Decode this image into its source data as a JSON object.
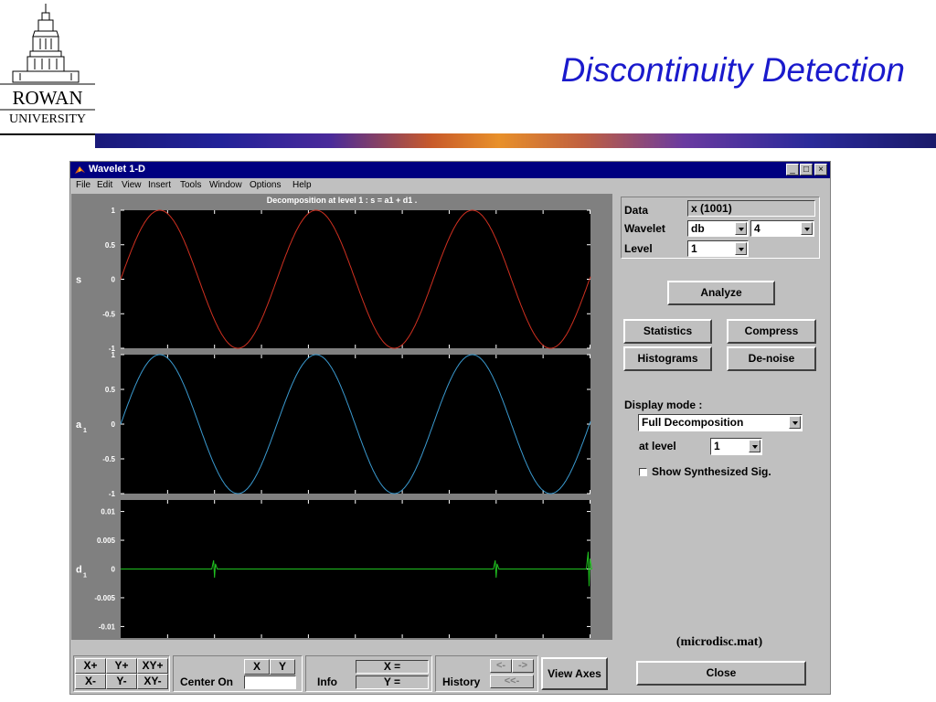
{
  "slide": {
    "title": "Discontinuity Detection",
    "logo_line1": "ROWAN",
    "logo_line2": "UNIVERSITY",
    "caption": "(microdisc.mat)"
  },
  "window": {
    "title": "Wavelet 1-D",
    "menu": [
      "File",
      "Edit",
      "View",
      "Insert",
      "Tools",
      "Window",
      "Options",
      "Help"
    ],
    "controls": [
      "_",
      "□",
      "×"
    ]
  },
  "plot": {
    "title": "Decomposition at level 1 : s = a1 + d1 ."
  },
  "chart_data": [
    {
      "type": "line",
      "name": "s",
      "ylabel": "s",
      "ylim": [
        -1,
        1
      ],
      "yticks": [
        "1",
        "0.5",
        "0",
        "-0.5",
        "-1"
      ],
      "xlim": [
        0,
        1001
      ],
      "x_period": 333,
      "x_start_phase": 0,
      "color": "#d03020"
    },
    {
      "type": "line",
      "name": "a1",
      "ylabel": "a",
      "ylabel_sub": "1",
      "ylim": [
        -1,
        1
      ],
      "yticks": [
        "1",
        "0.5",
        "0",
        "-0.5",
        "-1"
      ],
      "xlim": [
        0,
        1001
      ],
      "x_period": 333,
      "x_start_phase": 0,
      "color": "#3a9ad0"
    },
    {
      "type": "line",
      "name": "d1",
      "ylabel": "d",
      "ylabel_sub": "1",
      "ylim": [
        -0.012,
        0.012
      ],
      "yticks": [
        "0.01",
        "0.005",
        "0",
        "-0.005",
        "-0.01"
      ],
      "ytick_values": [
        0.01,
        0.005,
        0,
        -0.005,
        -0.01
      ],
      "xlim": [
        0,
        1001
      ],
      "xticks": [
        "100",
        "200",
        "300",
        "400",
        "500",
        "600",
        "700",
        "800",
        "900",
        "1000"
      ],
      "xtick_values": [
        100,
        200,
        300,
        400,
        500,
        600,
        700,
        800,
        900,
        1000
      ],
      "spikes": [
        {
          "x": 200,
          "amp": 0.0015
        },
        {
          "x": 800,
          "amp": 0.0015
        },
        {
          "x": 998,
          "amp": 0.003
        }
      ],
      "color": "#20c020"
    }
  ],
  "controls": {
    "data_label": "Data",
    "data_value": "x  (1001)",
    "wavelet_label": "Wavelet",
    "wavelet_family": "db",
    "wavelet_order": "4",
    "level_label": "Level",
    "level_value": "1",
    "analyze": "Analyze",
    "statistics": "Statistics",
    "compress": "Compress",
    "histograms": "Histograms",
    "denoise": "De-noise",
    "display_mode_label": "Display mode :",
    "display_mode_value": "Full Decomposition",
    "at_level_label": "at level",
    "at_level_value": "1",
    "show_synth": "Show Synthesized Sig.",
    "close": "Close"
  },
  "toolbar": {
    "xplus": "X+",
    "yplus": "Y+",
    "xyplus": "XY+",
    "xminus": "X-",
    "yminus": "Y-",
    "xyminus": "XY-",
    "x_btn": "X",
    "y_btn": "Y",
    "center_on": "Center On",
    "info": "Info",
    "x_eq": "X =",
    "y_eq": "Y =",
    "history": "History",
    "hist_back": "<-",
    "hist_fwd": "->",
    "hist_first": "<<-",
    "view_axes": "View Axes"
  }
}
